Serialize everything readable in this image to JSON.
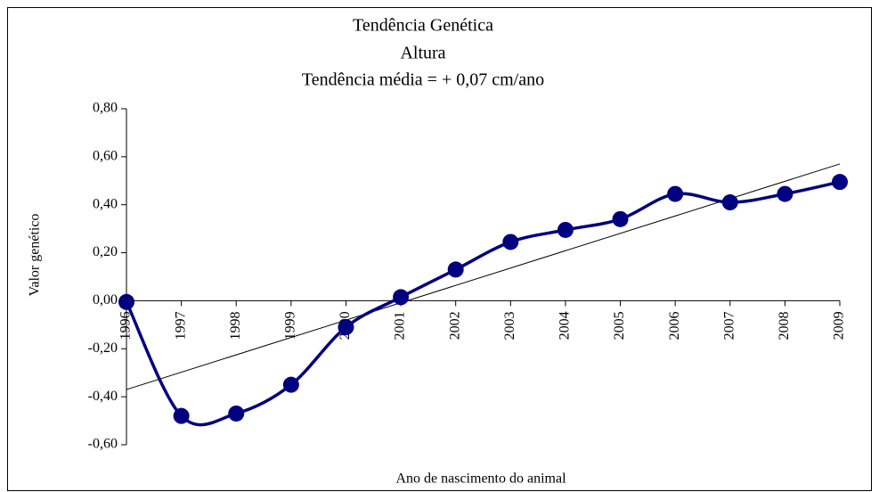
{
  "chart_data": {
    "type": "line",
    "title": [
      "Tendência Genética",
      "Altura",
      "Tendência média = + 0,07 cm/ano"
    ],
    "ylabel": "Valor genético",
    "xlabel": "Ano de nascimento do animal",
    "categories": [
      "1996",
      "1997",
      "1998",
      "1999",
      "2000",
      "2001",
      "2002",
      "2003",
      "2004",
      "2005",
      "2006",
      "2007",
      "2008",
      "2009"
    ],
    "series": [
      {
        "color": "#000080",
        "values": [
          -0.005,
          -0.48,
          -0.47,
          -0.35,
          -0.11,
          0.015,
          0.13,
          0.245,
          0.295,
          0.34,
          0.445,
          0.41,
          0.445,
          0.495
        ]
      }
    ],
    "trendline": {
      "color": "#000000",
      "values": [
        -0.37,
        0.57
      ]
    },
    "ylim": [
      -0.6,
      0.8
    ],
    "yticks": [
      {
        "value": 0.8,
        "label": "0,80"
      },
      {
        "value": 0.6,
        "label": "0,60"
      },
      {
        "value": 0.4,
        "label": "0,40"
      },
      {
        "value": 0.2,
        "label": "0,20"
      },
      {
        "value": 0,
        "label": "0,00"
      },
      {
        "value": -0.2,
        "label": "-0,20"
      },
      {
        "value": -0.4,
        "label": "-0,40"
      },
      {
        "value": -0.6,
        "label": "-0,60"
      }
    ],
    "smooth": true
  }
}
